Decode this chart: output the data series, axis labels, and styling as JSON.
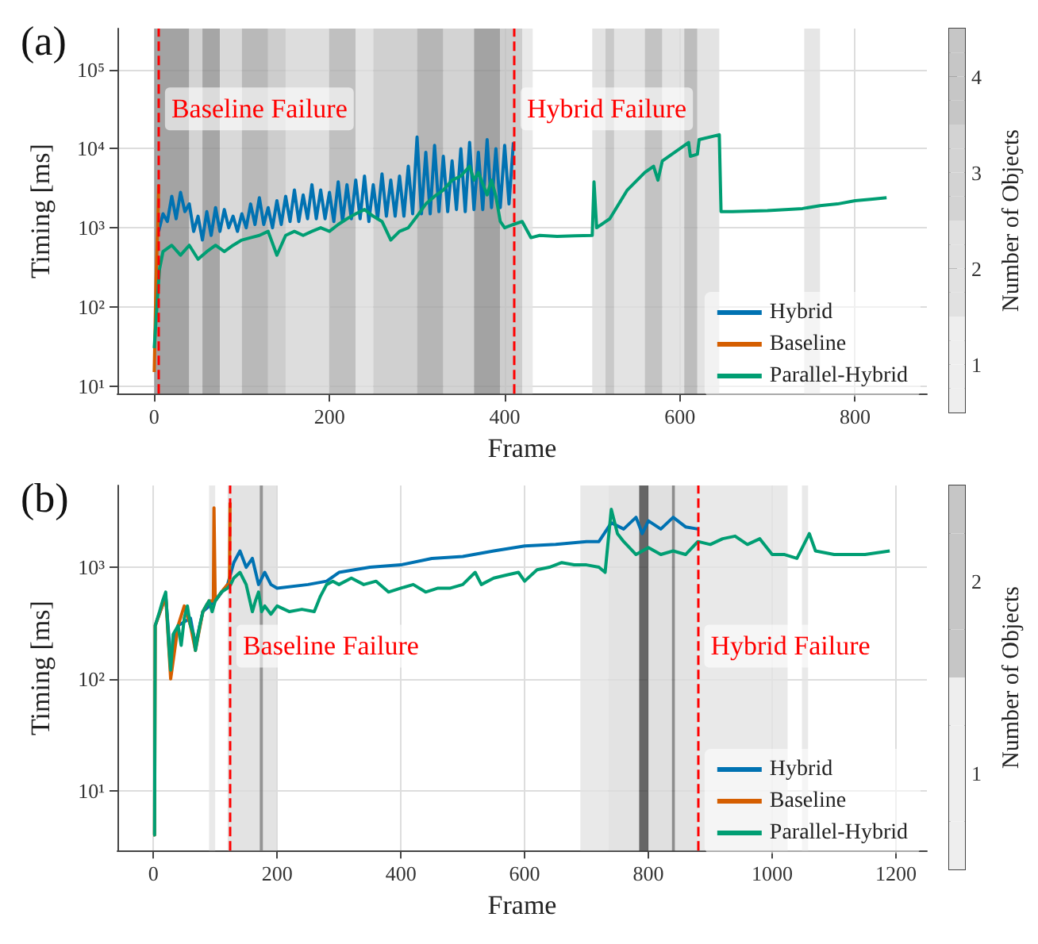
{
  "chart_data": [
    {
      "type": "line",
      "title": "(a)",
      "xlabel": "Frame",
      "ylabel": "Timing [ms]",
      "clabel": "Number of Objects",
      "clim": [
        0.5,
        4.5
      ],
      "cticks": [
        1,
        2,
        3,
        4
      ],
      "xlim": [
        -42,
        882
      ],
      "ylim": [
        8,
        330000
      ],
      "xticks": [
        0,
        200,
        400,
        600,
        800
      ],
      "yticks": [
        {
          "value": 10,
          "label": "10¹"
        },
        {
          "value": 100,
          "label": "10²"
        },
        {
          "value": 1000,
          "label": "10³"
        },
        {
          "value": 10000,
          "label": "10⁴"
        },
        {
          "value": 100000,
          "label": "10⁵"
        }
      ],
      "log": "y",
      "grid": true,
      "legend": "bottom right",
      "marker": "none",
      "series": [
        {
          "name": "Hybrid",
          "color": "#0072b2",
          "x": [
            5,
            10,
            15,
            20,
            25,
            30,
            35,
            40,
            45,
            50,
            55,
            60,
            65,
            70,
            75,
            80,
            85,
            90,
            95,
            100,
            105,
            110,
            115,
            120,
            125,
            130,
            135,
            140,
            145,
            150,
            155,
            160,
            165,
            170,
            175,
            180,
            185,
            190,
            195,
            200,
            205,
            210,
            215,
            220,
            225,
            230,
            235,
            240,
            245,
            250,
            255,
            260,
            265,
            270,
            275,
            280,
            285,
            290,
            295,
            300,
            305,
            310,
            315,
            320,
            325,
            330,
            335,
            340,
            345,
            350,
            355,
            360,
            365,
            370,
            375,
            380,
            385,
            390,
            395,
            400,
            405,
            410
          ],
          "values": [
            900,
            1500,
            1200,
            2500,
            1300,
            2800,
            1600,
            2000,
            900,
            1400,
            700,
            1600,
            800,
            1800,
            900,
            1700,
            1000,
            1400,
            900,
            1500,
            1000,
            2000,
            1100,
            2400,
            1100,
            1800,
            1000,
            2200,
            1100,
            2500,
            1200,
            3000,
            1200,
            2600,
            1300,
            3500,
            1300,
            3000,
            1300,
            2800,
            1200,
            3800,
            1200,
            3500,
            1300,
            4000,
            1300,
            4500,
            1200,
            3500,
            1300,
            4800,
            1400,
            4000,
            1400,
            4500,
            1400,
            6000,
            1500,
            14000,
            1500,
            9000,
            1500,
            11000,
            1600,
            8000,
            1600,
            7000,
            1700,
            10000,
            1600,
            12000,
            1700,
            9000,
            1700,
            13000,
            1800,
            10000,
            1800,
            11000,
            2000,
            12000
          ]
        },
        {
          "name": "Baseline",
          "color": "#d55e00",
          "x": [
            0,
            2,
            4,
            5
          ],
          "values": [
            15,
            200,
            1000,
            3500
          ]
        },
        {
          "name": "Parallel-Hybrid",
          "color": "#009e73",
          "x": [
            0,
            3,
            6,
            10,
            20,
            30,
            40,
            50,
            60,
            70,
            80,
            90,
            100,
            110,
            120,
            130,
            140,
            150,
            160,
            170,
            180,
            190,
            200,
            210,
            220,
            230,
            240,
            250,
            260,
            270,
            280,
            290,
            300,
            310,
            320,
            330,
            340,
            350,
            360,
            365,
            370,
            380,
            385,
            390,
            395,
            400,
            410,
            420,
            430,
            440,
            460,
            480,
            500,
            502,
            505,
            520,
            540,
            560,
            570,
            575,
            580,
            600,
            610,
            612,
            620,
            622,
            645,
            647,
            660,
            700,
            740,
            760,
            780,
            800,
            820,
            836
          ],
          "values": [
            30,
            100,
            300,
            500,
            600,
            450,
            600,
            400,
            500,
            600,
            500,
            600,
            700,
            750,
            800,
            900,
            450,
            800,
            900,
            800,
            900,
            1000,
            900,
            1100,
            1300,
            1500,
            1700,
            1400,
            1200,
            700,
            900,
            1000,
            1400,
            2000,
            2500,
            3000,
            4000,
            4500,
            6000,
            4000,
            5000,
            2600,
            4000,
            2500,
            1200,
            1000,
            1100,
            1200,
            750,
            800,
            780,
            790,
            800,
            3800,
            1000,
            1300,
            3000,
            5000,
            6000,
            4000,
            7000,
            10000,
            12000,
            8000,
            8500,
            13000,
            15000,
            1600,
            1600,
            1650,
            1750,
            1900,
            2000,
            2200,
            2300,
            2400
          ]
        }
      ],
      "ref_lines": [
        {
          "axis": "x",
          "value": 5,
          "label": "Baseline Failure",
          "color": "#ff0000",
          "line_style": "dashed"
        },
        {
          "axis": "x",
          "value": 411,
          "label": "Hybrid Failure",
          "color": "#ff0000",
          "line_style": "dashed"
        }
      ],
      "bands": [
        {
          "axis": "x",
          "from": 0,
          "to": 40,
          "color": "#8c8c8c"
        },
        {
          "axis": "x",
          "from": 40,
          "to": 55,
          "color": "#c8c8c8"
        },
        {
          "axis": "x",
          "from": 55,
          "to": 75,
          "color": "#909090"
        },
        {
          "axis": "x",
          "from": 75,
          "to": 100,
          "color": "#d0d0d0"
        },
        {
          "axis": "x",
          "from": 100,
          "to": 130,
          "color": "#a8a8a8"
        },
        {
          "axis": "x",
          "from": 130,
          "to": 150,
          "color": "#c0c0c0"
        },
        {
          "axis": "x",
          "from": 150,
          "to": 200,
          "color": "#d4d4d4"
        },
        {
          "axis": "x",
          "from": 200,
          "to": 230,
          "color": "#b0b0b0"
        },
        {
          "axis": "x",
          "from": 230,
          "to": 250,
          "color": "#dcdcdc"
        },
        {
          "axis": "x",
          "from": 250,
          "to": 300,
          "color": "#c4c4c4"
        },
        {
          "axis": "x",
          "from": 300,
          "to": 330,
          "color": "#a4a4a4"
        },
        {
          "axis": "x",
          "from": 330,
          "to": 365,
          "color": "#c8c8c8"
        },
        {
          "axis": "x",
          "from": 365,
          "to": 395,
          "color": "#8c8c8c"
        },
        {
          "axis": "x",
          "from": 395,
          "to": 420,
          "color": "#c0c0c0"
        },
        {
          "axis": "x",
          "from": 420,
          "to": 432,
          "color": "#e4e4e4"
        },
        {
          "axis": "x",
          "from": 500,
          "to": 515,
          "color": "#dcdcdc"
        },
        {
          "axis": "x",
          "from": 515,
          "to": 525,
          "color": "#bcbcbc"
        },
        {
          "axis": "x",
          "from": 525,
          "to": 560,
          "color": "#dcdcdc"
        },
        {
          "axis": "x",
          "from": 560,
          "to": 580,
          "color": "#b4b4b4"
        },
        {
          "axis": "x",
          "from": 580,
          "to": 605,
          "color": "#dcdcdc"
        },
        {
          "axis": "x",
          "from": 605,
          "to": 620,
          "color": "#acacac"
        },
        {
          "axis": "x",
          "from": 620,
          "to": 645,
          "color": "#dcdcdc"
        },
        {
          "axis": "x",
          "from": 742,
          "to": 760,
          "color": "#e0e0e0"
        }
      ]
    },
    {
      "type": "line",
      "title": "(b)",
      "xlabel": "Frame",
      "ylabel": "Timing [ms]",
      "clabel": "Number of Objects",
      "clim": [
        0.5,
        2.5
      ],
      "cticks": [
        {
          "value": 1,
          "label": "1"
        },
        {
          "value": 2,
          "label": "2"
        }
      ],
      "xlim": [
        -58,
        1250
      ],
      "ylim": [
        2.9,
        5400
      ],
      "xticks": [
        0,
        200,
        400,
        600,
        800,
        1000,
        1200
      ],
      "yticks": [
        {
          "value": 10,
          "label": "10¹"
        },
        {
          "value": 100,
          "label": "10²"
        },
        {
          "value": 1000,
          "label": "10³"
        }
      ],
      "log": "y",
      "grid": true,
      "legend": "bottom right",
      "marker": "none",
      "series": [
        {
          "name": "Hybrid",
          "color": "#0072b2",
          "x": [
            3,
            20,
            28,
            40,
            60,
            68,
            80,
            100,
            120,
            130,
            140,
            150,
            160,
            170,
            180,
            190,
            200,
            250,
            280,
            300,
            350,
            400,
            450,
            500,
            550,
            600,
            650,
            700,
            720,
            740,
            760,
            780,
            790,
            800,
            820,
            840,
            860,
            880
          ],
          "values": [
            300,
            550,
            150,
            300,
            350,
            200,
            400,
            500,
            700,
            1100,
            1400,
            1000,
            1200,
            700,
            900,
            700,
            650,
            700,
            750,
            900,
            1000,
            1050,
            1200,
            1250,
            1400,
            1550,
            1600,
            1700,
            1700,
            2500,
            2200,
            2800,
            2000,
            2600,
            2200,
            2800,
            2300,
            2200
          ]
        },
        {
          "name": "Baseline",
          "color": "#d55e00",
          "x": [
            0,
            2,
            3,
            20,
            28,
            40,
            50,
            60,
            68,
            80,
            90,
            97,
            98,
            100,
            110,
            120,
            123,
            124
          ],
          "values": [
            4,
            4,
            300,
            550,
            100,
            300,
            450,
            300,
            180,
            400,
            500,
            500,
            3400,
            500,
            600,
            700,
            700,
            3800
          ]
        },
        {
          "name": "Parallel-Hybrid",
          "color": "#009e73",
          "x": [
            0,
            2,
            3,
            10,
            15,
            20,
            25,
            28,
            32,
            40,
            45,
            50,
            55,
            60,
            65,
            68,
            75,
            80,
            85,
            90,
            95,
            100,
            110,
            120,
            125,
            130,
            140,
            150,
            160,
            165,
            170,
            175,
            180,
            190,
            200,
            220,
            240,
            260,
            270,
            280,
            290,
            300,
            320,
            340,
            360,
            380,
            400,
            420,
            440,
            460,
            480,
            500,
            520,
            530,
            550,
            570,
            590,
            600,
            620,
            640,
            660,
            680,
            700,
            720,
            730,
            740,
            750,
            760,
            780,
            800,
            820,
            840,
            860,
            880,
            900,
            920,
            940,
            960,
            980,
            1000,
            1020,
            1040,
            1060,
            1070,
            1100,
            1150,
            1190
          ],
          "values": [
            4,
            4,
            300,
            400,
            500,
            600,
            200,
            120,
            250,
            300,
            200,
            350,
            450,
            300,
            250,
            180,
            300,
            400,
            450,
            500,
            400,
            500,
            600,
            650,
            700,
            800,
            900,
            700,
            400,
            500,
            600,
            400,
            450,
            380,
            450,
            400,
            420,
            400,
            550,
            700,
            750,
            700,
            800,
            700,
            750,
            600,
            650,
            700,
            600,
            650,
            650,
            700,
            900,
            700,
            800,
            850,
            900,
            750,
            950,
            1000,
            1100,
            1050,
            1050,
            1000,
            900,
            3300,
            2000,
            1700,
            1300,
            1500,
            1300,
            1400,
            1300,
            1700,
            1600,
            1800,
            1900,
            1600,
            1800,
            1300,
            1300,
            1200,
            2000,
            1400,
            1300,
            1300,
            1400
          ]
        }
      ],
      "ref_lines": [
        {
          "axis": "x",
          "value": 124,
          "label": "Baseline Failure",
          "color": "#ff0000",
          "line_style": "dashed"
        },
        {
          "axis": "x",
          "value": 880,
          "label": "Hybrid Failure",
          "color": "#ff0000",
          "line_style": "dashed"
        }
      ],
      "bands": [
        {
          "axis": "x",
          "from": 90,
          "to": 100,
          "color": "#e4e4e4"
        },
        {
          "axis": "x",
          "from": 120,
          "to": 200,
          "color": "#dcdcdc"
        },
        {
          "axis": "x",
          "from": 172,
          "to": 177,
          "color": "#808080"
        },
        {
          "axis": "x",
          "from": 690,
          "to": 735,
          "color": "#e4e4e4"
        },
        {
          "axis": "x",
          "from": 735,
          "to": 785,
          "color": "#dcdcdc"
        },
        {
          "axis": "x",
          "from": 785,
          "to": 800,
          "color": "#404040"
        },
        {
          "axis": "x",
          "from": 800,
          "to": 838,
          "color": "#d8d8d8"
        },
        {
          "axis": "x",
          "from": 838,
          "to": 843,
          "color": "#707070"
        },
        {
          "axis": "x",
          "from": 843,
          "to": 880,
          "color": "#dcdcdc"
        },
        {
          "axis": "x",
          "from": 880,
          "to": 1025,
          "color": "#e4e4e4"
        },
        {
          "axis": "x",
          "from": 1048,
          "to": 1058,
          "color": "#e4e4e4"
        }
      ]
    }
  ]
}
